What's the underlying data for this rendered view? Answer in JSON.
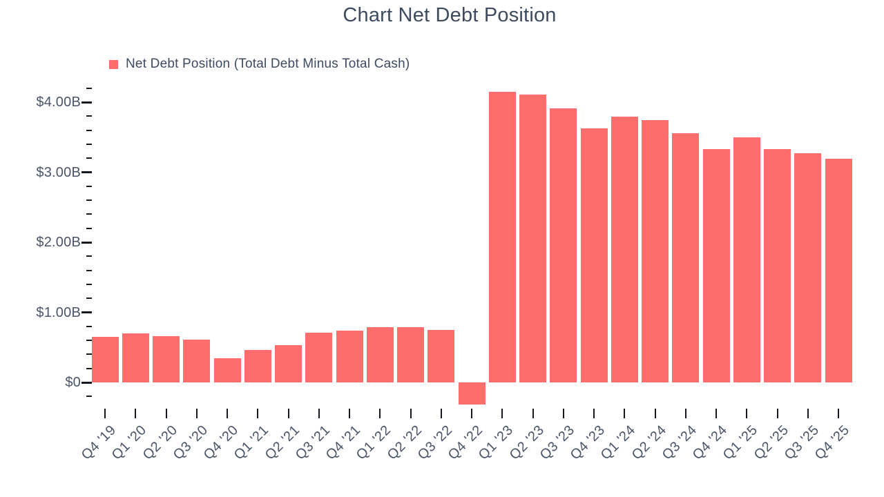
{
  "title": "Chart Net Debt Position",
  "legend": {
    "label": "Net Debt Position (Total Debt Minus Total Cash)"
  },
  "colors": {
    "bar": "#FC6D6C",
    "title_text": "#3E4A5E",
    "axis_text": "#4A556A",
    "tick": "#15191F",
    "background": "#FFFFFF"
  },
  "chart_data": {
    "type": "bar",
    "title": "Chart Net Debt Position",
    "unit": "USD billions",
    "categories": [
      "Q4 '19",
      "Q1 '20",
      "Q2 '20",
      "Q3 '20",
      "Q4 '20",
      "Q1 '21",
      "Q2 '21",
      "Q3 '21",
      "Q4 '21",
      "Q1 '22",
      "Q2 '22",
      "Q3 '22",
      "Q4 '22",
      "Q1 '23",
      "Q2 '23",
      "Q3 '23",
      "Q4 '23",
      "Q1 '24",
      "Q2 '24",
      "Q3 '24",
      "Q4 '24",
      "Q1 '25",
      "Q2 '25",
      "Q3 '25",
      "Q4 '25"
    ],
    "series": [
      {
        "name": "Net Debt Position (Total Debt Minus Total Cash)",
        "values_billions_usd": [
          0.65,
          0.7,
          0.66,
          0.61,
          0.34,
          0.46,
          0.53,
          0.71,
          0.74,
          0.79,
          0.79,
          0.75,
          -0.32,
          4.15,
          4.11,
          3.91,
          3.63,
          3.79,
          3.74,
          3.56,
          3.33,
          3.5,
          3.33,
          3.27,
          3.19
        ]
      }
    ],
    "y_axis": {
      "major_tick_labels": [
        "$0",
        "$1.00B",
        "$2.00B",
        "$3.00B",
        "$4.00B"
      ],
      "major_tick_values": [
        0,
        1,
        2,
        3,
        4
      ],
      "minor_tick_step": 0.2,
      "range_billions": [
        -0.4,
        4.2
      ]
    },
    "legend_position": "top-left",
    "grid": false
  }
}
